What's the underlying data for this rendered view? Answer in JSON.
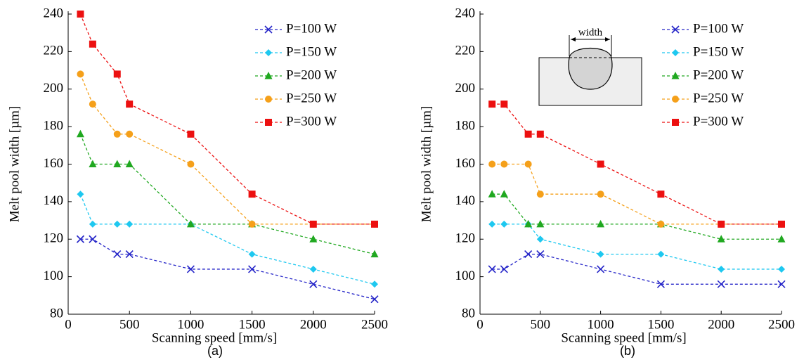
{
  "chart_data": [
    {
      "type": "line",
      "caption": "(a)",
      "xlabel": "Scanning speed [mm/s]",
      "ylabel": "Melt pool width [µm]",
      "x": [
        100,
        200,
        400,
        500,
        1000,
        1500,
        2000,
        2500
      ],
      "xlim": [
        0,
        2500
      ],
      "xticks": [
        0,
        500,
        1000,
        1500,
        2000,
        2500
      ],
      "ylim": [
        80,
        240
      ],
      "yticks": [
        80,
        100,
        120,
        140,
        160,
        180,
        200,
        220,
        240
      ],
      "legend": "upper right",
      "series": [
        {
          "name": "P=100 W",
          "color": "#2424c8",
          "marker": "x",
          "values": [
            120,
            120,
            112,
            112,
            104,
            104,
            96,
            88
          ]
        },
        {
          "name": "P=150 W",
          "color": "#1ec8f0",
          "marker": "diamond",
          "values": [
            144,
            128,
            128,
            128,
            128,
            112,
            104,
            96
          ]
        },
        {
          "name": "P=200 W",
          "color": "#20a820",
          "marker": "triangle",
          "values": [
            176,
            160,
            160,
            160,
            128,
            128,
            120,
            112
          ]
        },
        {
          "name": "P=250 W",
          "color": "#f5a01a",
          "marker": "circle",
          "values": [
            208,
            192,
            176,
            176,
            160,
            128,
            128,
            128
          ]
        },
        {
          "name": "P=300 W",
          "color": "#ec1010",
          "marker": "square",
          "values": [
            240,
            224,
            208,
            192,
            176,
            144,
            128,
            128
          ]
        }
      ]
    },
    {
      "type": "line",
      "caption": "(b)",
      "xlabel": "Scanning speed [mm/s]",
      "ylabel": "Melt pool width [µm]",
      "annotation": "width",
      "x": [
        100,
        200,
        400,
        500,
        1000,
        1500,
        2000,
        2500
      ],
      "xlim": [
        0,
        2500
      ],
      "xticks": [
        0,
        500,
        1000,
        1500,
        2000,
        2500
      ],
      "ylim": [
        80,
        240
      ],
      "yticks": [
        80,
        100,
        120,
        140,
        160,
        180,
        200,
        220,
        240
      ],
      "legend": "upper right",
      "series": [
        {
          "name": "P=100 W",
          "color": "#2424c8",
          "marker": "x",
          "values": [
            104,
            104,
            112,
            112,
            104,
            96,
            96,
            96
          ]
        },
        {
          "name": "P=150 W",
          "color": "#1ec8f0",
          "marker": "diamond",
          "values": [
            128,
            128,
            128,
            120,
            112,
            112,
            104,
            104
          ]
        },
        {
          "name": "P=200 W",
          "color": "#20a820",
          "marker": "triangle",
          "values": [
            144,
            144,
            128,
            128,
            128,
            128,
            120,
            120
          ]
        },
        {
          "name": "P=250 W",
          "color": "#f5a01a",
          "marker": "circle",
          "values": [
            160,
            160,
            160,
            144,
            144,
            128,
            128,
            128
          ]
        },
        {
          "name": "P=300 W",
          "color": "#ec1010",
          "marker": "square",
          "values": [
            192,
            192,
            176,
            176,
            160,
            144,
            128,
            128
          ]
        }
      ]
    }
  ]
}
